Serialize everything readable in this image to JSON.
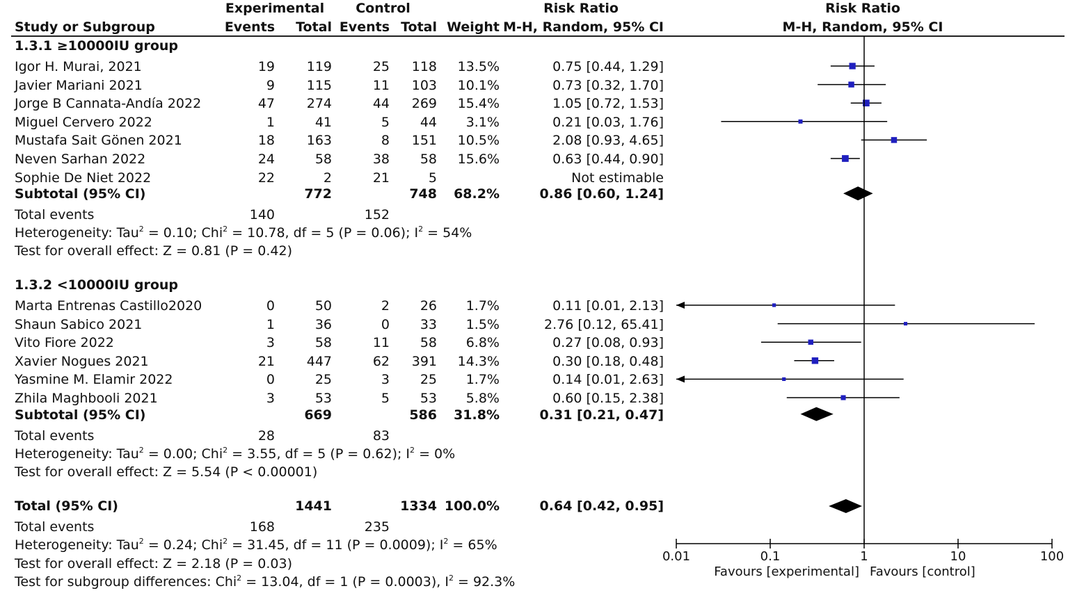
{
  "header": {
    "study_col": "Study or Subgroup",
    "experimental_group": "Experimental",
    "control_group": "Control",
    "events": "Events",
    "total": "Total",
    "weight": "Weight",
    "rr_title": "Risk Ratio",
    "rr_method": "M-H, Random, 95% CI",
    "plot_title": "Risk Ratio",
    "plot_method": "M-H, Random, 95% CI"
  },
  "subgroups": [
    {
      "title": "1.3.1 ≥10000IU group",
      "studies": [
        {
          "name": "Igor H. Murai, 2021",
          "exp_events": "19",
          "exp_total": "119",
          "ctl_events": "25",
          "ctl_total": "118",
          "weight": "13.5%",
          "ci_text": "0.75 [0.44, 1.29]",
          "rr": 0.75,
          "lo": 0.44,
          "hi": 1.29,
          "w": 13.5
        },
        {
          "name": "Javier Mariani 2021",
          "exp_events": "9",
          "exp_total": "115",
          "ctl_events": "11",
          "ctl_total": "103",
          "weight": "10.1%",
          "ci_text": "0.73 [0.32, 1.70]",
          "rr": 0.73,
          "lo": 0.32,
          "hi": 1.7,
          "w": 10.1
        },
        {
          "name": "Jorge B Cannata-Andía 2022",
          "exp_events": "47",
          "exp_total": "274",
          "ctl_events": "44",
          "ctl_total": "269",
          "weight": "15.4%",
          "ci_text": "1.05 [0.72, 1.53]",
          "rr": 1.05,
          "lo": 0.72,
          "hi": 1.53,
          "w": 15.4
        },
        {
          "name": "Miguel Cervero 2022",
          "exp_events": "1",
          "exp_total": "41",
          "ctl_events": "5",
          "ctl_total": "44",
          "weight": "3.1%",
          "ci_text": "0.21 [0.03, 1.76]",
          "rr": 0.21,
          "lo": 0.03,
          "hi": 1.76,
          "w": 3.1
        },
        {
          "name": "Mustafa Sait Gönen 2021",
          "exp_events": "18",
          "exp_total": "163",
          "ctl_events": "8",
          "ctl_total": "151",
          "weight": "10.5%",
          "ci_text": "2.08 [0.93, 4.65]",
          "rr": 2.08,
          "lo": 0.93,
          "hi": 4.65,
          "w": 10.5
        },
        {
          "name": "Neven Sarhan 2022",
          "exp_events": "24",
          "exp_total": "58",
          "ctl_events": "38",
          "ctl_total": "58",
          "weight": "15.6%",
          "ci_text": "0.63 [0.44, 0.90]",
          "rr": 0.63,
          "lo": 0.44,
          "hi": 0.9,
          "w": 15.6
        },
        {
          "name": "Sophie De Niet 2022",
          "exp_events": "22",
          "exp_total": "2",
          "ctl_events": "21",
          "ctl_total": "5",
          "weight": "",
          "ci_text": "Not estimable",
          "rr": null,
          "lo": null,
          "hi": null,
          "w": null
        }
      ],
      "subtotal": {
        "label": "Subtotal (95% CI)",
        "exp_total": "772",
        "ctl_total": "748",
        "weight": "68.2%",
        "ci_text": "0.86 [0.60, 1.24]",
        "rr": 0.86,
        "lo": 0.6,
        "hi": 1.24
      },
      "total_events": {
        "label": "Total events",
        "exp": "140",
        "ctl": "152"
      },
      "heterogeneity": {
        "pre": "Heterogeneity: Tau",
        "mid1": " = 0.10; Chi",
        "mid2": " = 10.78, df = 5 (P = 0.06); I",
        "post": " = 54%"
      },
      "overall": "Test for overall effect: Z = 0.81 (P = 0.42)"
    },
    {
      "title": "1.3.2 <10000IU group",
      "studies": [
        {
          "name": "Marta Entrenas Castillo2020",
          "exp_events": "0",
          "exp_total": "50",
          "ctl_events": "2",
          "ctl_total": "26",
          "weight": "1.7%",
          "ci_text": "0.11 [0.01, 2.13]",
          "rr": 0.11,
          "lo": 0.01,
          "hi": 2.13,
          "w": 1.7
        },
        {
          "name": "Shaun Sabico  2021",
          "exp_events": "1",
          "exp_total": "36",
          "ctl_events": "0",
          "ctl_total": "33",
          "weight": "1.5%",
          "ci_text": "2.76 [0.12, 65.41]",
          "rr": 2.76,
          "lo": 0.12,
          "hi": 65.41,
          "w": 1.5
        },
        {
          "name": "Vito Fiore 2022",
          "exp_events": "3",
          "exp_total": "58",
          "ctl_events": "11",
          "ctl_total": "58",
          "weight": "6.8%",
          "ci_text": "0.27 [0.08, 0.93]",
          "rr": 0.27,
          "lo": 0.08,
          "hi": 0.93,
          "w": 6.8
        },
        {
          "name": "Xavier Nogues 2021",
          "exp_events": "21",
          "exp_total": "447",
          "ctl_events": "62",
          "ctl_total": "391",
          "weight": "14.3%",
          "ci_text": "0.30 [0.18, 0.48]",
          "rr": 0.3,
          "lo": 0.18,
          "hi": 0.48,
          "w": 14.3
        },
        {
          "name": "Yasmine M. Elamir 2022",
          "exp_events": "0",
          "exp_total": "25",
          "ctl_events": "3",
          "ctl_total": "25",
          "weight": "1.7%",
          "ci_text": "0.14 [0.01, 2.63]",
          "rr": 0.14,
          "lo": 0.01,
          "hi": 2.63,
          "w": 1.7
        },
        {
          "name": "Zhila Maghbooli 2021",
          "exp_events": "3",
          "exp_total": "53",
          "ctl_events": "5",
          "ctl_total": "53",
          "weight": "5.8%",
          "ci_text": "0.60 [0.15, 2.38]",
          "rr": 0.6,
          "lo": 0.15,
          "hi": 2.38,
          "w": 5.8
        }
      ],
      "subtotal": {
        "label": "Subtotal (95% CI)",
        "exp_total": "669",
        "ctl_total": "586",
        "weight": "31.8%",
        "ci_text": "0.31 [0.21, 0.47]",
        "rr": 0.31,
        "lo": 0.21,
        "hi": 0.47
      },
      "total_events": {
        "label": "Total events",
        "exp": "28",
        "ctl": "83"
      },
      "heterogeneity": {
        "pre": "Heterogeneity: Tau",
        "mid1": " = 0.00; Chi",
        "mid2": " = 3.55, df = 5 (P = 0.62); I",
        "post": " = 0%"
      },
      "overall": "Test for overall effect: Z = 5.54 (P < 0.00001)"
    }
  ],
  "total": {
    "label": "Total (95% CI)",
    "exp_total": "1441",
    "ctl_total": "1334",
    "weight": "100.0%",
    "ci_text": "0.64 [0.42, 0.95]",
    "rr": 0.64,
    "lo": 0.42,
    "hi": 0.95,
    "events_label": "Total events",
    "exp_events": "168",
    "ctl_events": "235",
    "heterogeneity": {
      "pre": "Heterogeneity: Tau",
      "mid1": " = 0.24; Chi",
      "mid2": " = 31.45, df = 11 (P = 0.0009); I",
      "post": " = 65%"
    },
    "overall": "Test for overall effect: Z = 2.18 (P = 0.03)",
    "subgroup_diff": {
      "pre": "Test for subgroup differences: Chi",
      "mid": " = 13.04, df = 1 (P = 0.0003), I",
      "post": " = 92.3%"
    }
  },
  "sup2": "2",
  "chart_data": {
    "type": "forest",
    "title": "Risk Ratio",
    "xlabel": "M-H, Random, 95% CI",
    "x_scale": "log",
    "xlim": [
      0.01,
      100
    ],
    "ticks": [
      0.01,
      0.1,
      1,
      10,
      100
    ],
    "tick_labels": [
      "0.01",
      "0.1",
      "1",
      "10",
      "100"
    ],
    "favours_left": "Favours [experimental]",
    "favours_right": "Favours [control]",
    "null_line": 1,
    "colors": {
      "study_marker": "#1f1fbf",
      "line": "#000000",
      "diamond": "#000000"
    }
  }
}
